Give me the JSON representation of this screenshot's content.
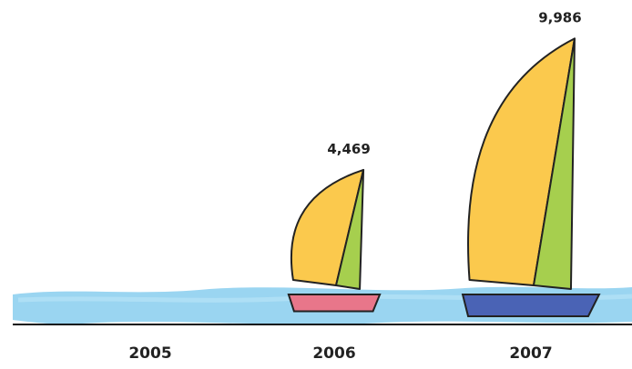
{
  "chart_data": {
    "type": "bar",
    "title": "",
    "xlabel": "",
    "ylabel": "",
    "categories": [
      "2005",
      "2006",
      "2007"
    ],
    "values": [
      0,
      4469,
      9986
    ],
    "data_labels": [
      "",
      "4,469",
      "9,986"
    ],
    "ylim": [
      0,
      10000
    ],
    "grid": false,
    "legend": "none",
    "colors": {
      "sail_front": "#fbc94d",
      "sail_back": "#a6cf4e",
      "water": "#8fd0ef",
      "waterline": "#111111",
      "hulls": [
        "#9ea6cf",
        "#e8768a",
        "#4a63b5"
      ]
    }
  }
}
